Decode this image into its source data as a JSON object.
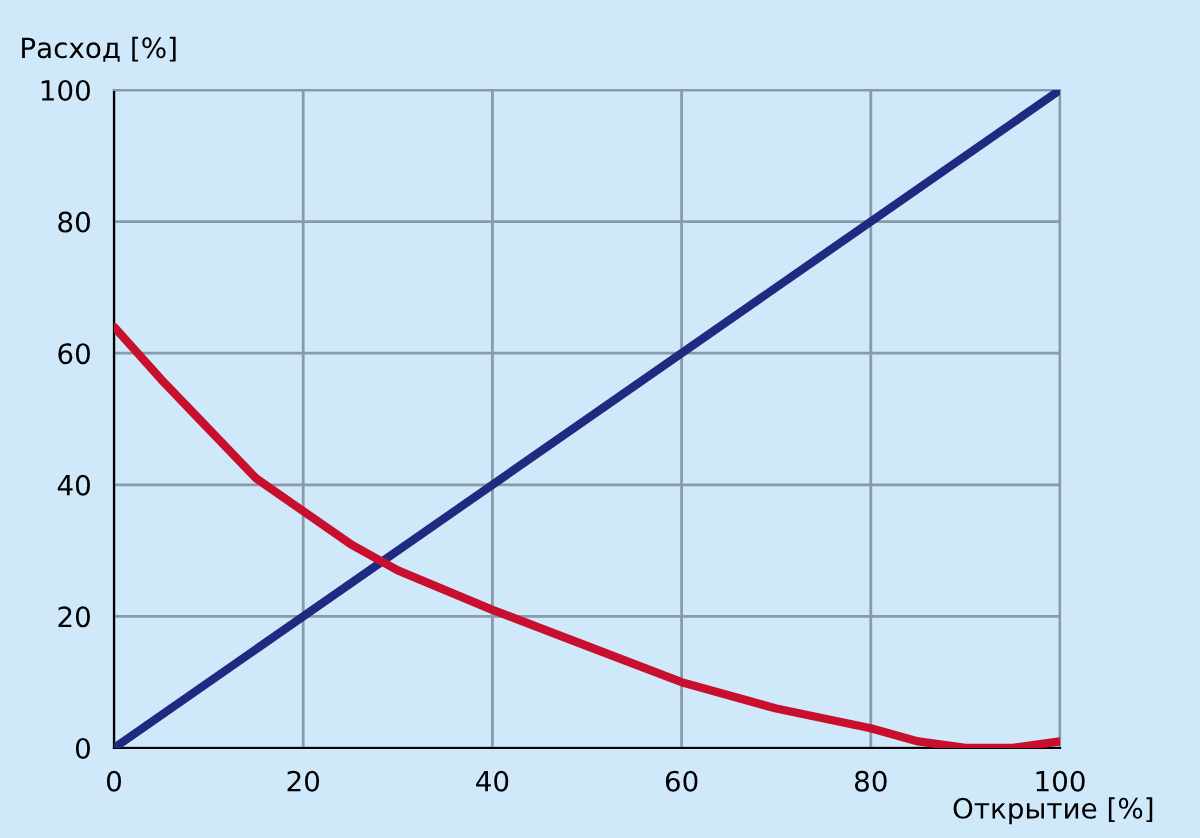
{
  "chart_data": {
    "type": "line",
    "xlabel": "Открытие [%]",
    "ylabel": "Расход [%]",
    "xlim": [
      0,
      100
    ],
    "ylim": [
      0,
      100
    ],
    "xticks": [
      0,
      20,
      40,
      60,
      80,
      100
    ],
    "yticks": [
      0,
      20,
      40,
      60,
      80,
      100
    ],
    "grid": true,
    "line_style": "solid",
    "series": [
      {
        "color": "#1f2a80",
        "x": [
          0,
          100
        ],
        "values": [
          0,
          100
        ]
      },
      {
        "color": "#c8102e",
        "x": [
          0,
          5,
          9,
          15,
          20,
          25,
          30,
          35,
          40,
          50,
          60,
          70,
          80,
          85,
          90,
          95,
          100
        ],
        "values": [
          64,
          56,
          50,
          41,
          36,
          31,
          27,
          24,
          21,
          15.5,
          10,
          6,
          3,
          1,
          0,
          0,
          1
        ]
      }
    ]
  }
}
